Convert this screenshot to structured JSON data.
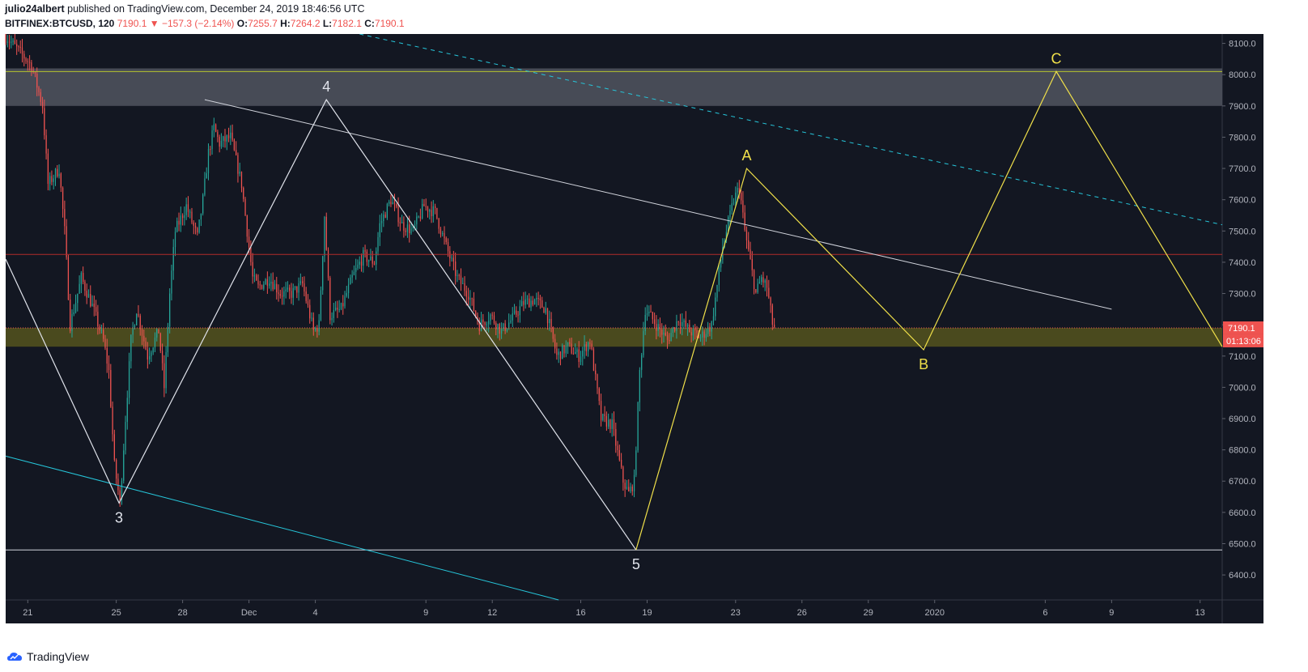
{
  "header": {
    "user": "julio24albert",
    "published_text": " published on TradingView.com, December 24, 2019 18:46:56 UTC",
    "symbol": "BITFINEX:BTCUSD, 120",
    "last": "7190.1",
    "change_arrow": "▼",
    "change": "−157.3 (−2.14%)",
    "o_label": "O:",
    "o_value": "7255.7",
    "h_label": "H:",
    "h_value": "7264.2",
    "l_label": "L:",
    "l_value": "7182.1",
    "c_label": "C:",
    "c_value": "7190.1"
  },
  "footer": {
    "brand": "TradingView"
  },
  "colors": {
    "background": "#131722",
    "up": "#26a69a",
    "down": "#ef5350",
    "wave_white": "#e0e3eb",
    "wave_yellow": "#f0e04a",
    "trend_cyan": "#26c6da",
    "resistance_zone": "#4a4e5a",
    "support_zone": "#4d4d1f"
  },
  "chart_data": {
    "type": "candlestick",
    "timeframe": "120",
    "y_axis": {
      "ticks": [
        "6400.0",
        "6500.0",
        "6600.0",
        "6700.0",
        "6800.0",
        "6900.0",
        "7000.0",
        "7100.0",
        "7200.0",
        "7300.0",
        "7400.0",
        "7500.0",
        "7600.0",
        "7700.0",
        "7800.0",
        "7900.0",
        "8000.0",
        "8100.0"
      ],
      "ylim": [
        6320,
        8130
      ]
    },
    "x_axis": {
      "ticks": [
        "21",
        "25",
        "28",
        "Dec",
        "4",
        "9",
        "12",
        "16",
        "19",
        "23",
        "26",
        "29",
        "2020",
        "6",
        "9",
        "13"
      ],
      "range": [
        "2019-11-20",
        "2020-01-14"
      ]
    },
    "last_price_label": "7190.1",
    "countdown_label": "01:13:06",
    "price_path": [
      [
        "2019-11-20T00:00",
        8130
      ],
      [
        "2019-11-21T06:00",
        8030
      ],
      [
        "2019-11-21T18:00",
        7900
      ],
      [
        "2019-11-22T00:00",
        7650
      ],
      [
        "2019-11-22T12:00",
        7700
      ],
      [
        "2019-11-22T18:00",
        7500
      ],
      [
        "2019-11-23T00:00",
        7200
      ],
      [
        "2019-11-23T12:00",
        7350
      ],
      [
        "2019-11-24T00:00",
        7260
      ],
      [
        "2019-11-24T12:00",
        7150
      ],
      [
        "2019-11-24T18:00",
        7050
      ],
      [
        "2019-11-25T00:00",
        6750
      ],
      [
        "2019-11-25T06:00",
        6630
      ],
      [
        "2019-11-25T12:00",
        6900
      ],
      [
        "2019-11-25T18:00",
        7150
      ],
      [
        "2019-11-26T00:00",
        7250
      ],
      [
        "2019-11-26T12:00",
        7100
      ],
      [
        "2019-11-27T00:00",
        7180
      ],
      [
        "2019-11-27T06:00",
        7000
      ],
      [
        "2019-11-27T12:00",
        7300
      ],
      [
        "2019-11-27T18:00",
        7500
      ],
      [
        "2019-11-28T06:00",
        7580
      ],
      [
        "2019-11-28T18:00",
        7480
      ],
      [
        "2019-11-29T00:00",
        7600
      ],
      [
        "2019-11-29T06:00",
        7750
      ],
      [
        "2019-11-29T12:00",
        7830
      ],
      [
        "2019-11-29T18:00",
        7780
      ],
      [
        "2019-11-30T06:00",
        7800
      ],
      [
        "2019-11-30T18:00",
        7650
      ],
      [
        "2019-12-01T00:00",
        7500
      ],
      [
        "2019-12-01T06:00",
        7350
      ],
      [
        "2019-12-01T12:00",
        7320
      ],
      [
        "2019-12-02T00:00",
        7350
      ],
      [
        "2019-12-02T12:00",
        7300
      ],
      [
        "2019-12-03T00:00",
        7300
      ],
      [
        "2019-12-03T12:00",
        7330
      ],
      [
        "2019-12-04T00:00",
        7180
      ],
      [
        "2019-12-04T06:00",
        7200
      ],
      [
        "2019-12-04T12:00",
        7550
      ],
      [
        "2019-12-04T18:00",
        7230
      ],
      [
        "2019-12-05T06:00",
        7250
      ],
      [
        "2019-12-05T18:00",
        7350
      ],
      [
        "2019-12-06T06:00",
        7420
      ],
      [
        "2019-12-06T18:00",
        7400
      ],
      [
        "2019-12-07T00:00",
        7520
      ],
      [
        "2019-12-07T12:00",
        7600
      ],
      [
        "2019-12-08T00:00",
        7520
      ],
      [
        "2019-12-08T12:00",
        7500
      ],
      [
        "2019-12-09T00:00",
        7580
      ],
      [
        "2019-12-09T12:00",
        7560
      ],
      [
        "2019-12-10T00:00",
        7450
      ],
      [
        "2019-12-10T12:00",
        7350
      ],
      [
        "2019-12-11T00:00",
        7300
      ],
      [
        "2019-12-11T12:00",
        7200
      ],
      [
        "2019-12-12T00:00",
        7230
      ],
      [
        "2019-12-12T12:00",
        7180
      ],
      [
        "2019-12-13T00:00",
        7220
      ],
      [
        "2019-12-13T12:00",
        7270
      ],
      [
        "2019-12-14T00:00",
        7280
      ],
      [
        "2019-12-14T12:00",
        7250
      ],
      [
        "2019-12-15T00:00",
        7100
      ],
      [
        "2019-12-15T12:00",
        7130
      ],
      [
        "2019-12-16T00:00",
        7100
      ],
      [
        "2019-12-16T12:00",
        7150
      ],
      [
        "2019-12-17T00:00",
        6900
      ],
      [
        "2019-12-17T12:00",
        6880
      ],
      [
        "2019-12-18T00:00",
        6700
      ],
      [
        "2019-12-18T06:00",
        6660
      ],
      [
        "2019-12-18T12:00",
        6700
      ],
      [
        "2019-12-18T18:00",
        7050
      ],
      [
        "2019-12-19T00:00",
        7250
      ],
      [
        "2019-12-19T12:00",
        7200
      ],
      [
        "2019-12-20T00:00",
        7150
      ],
      [
        "2019-12-20T12:00",
        7220
      ],
      [
        "2019-12-21T00:00",
        7180
      ],
      [
        "2019-12-21T12:00",
        7160
      ],
      [
        "2019-12-22T00:00",
        7200
      ],
      [
        "2019-12-22T12:00",
        7450
      ],
      [
        "2019-12-23T00:00",
        7600
      ],
      [
        "2019-12-23T06:00",
        7640
      ],
      [
        "2019-12-23T12:00",
        7500
      ],
      [
        "2019-12-23T18:00",
        7400
      ],
      [
        "2019-12-24T00:00",
        7300
      ],
      [
        "2019-12-24T06:00",
        7350
      ],
      [
        "2019-12-24T12:00",
        7320
      ],
      [
        "2019-12-24T18:47",
        7190
      ]
    ],
    "horizontal_lines": [
      {
        "price": 8010,
        "style": "solid",
        "color": "#b5c32e"
      },
      {
        "price": 7425,
        "style": "solid",
        "color": "#b22b2b"
      },
      {
        "price": 6480,
        "style": "solid",
        "color": "#d1d4dc"
      }
    ],
    "zones": [
      {
        "from": 7900,
        "to": 8020,
        "color": "#4a4e5a"
      },
      {
        "from": 7130,
        "to": 7190,
        "color": "#4d4d1f"
      }
    ],
    "trendlines": [
      {
        "from": [
          "2019-11-29T00:00",
          7920
        ],
        "to": [
          "2020-01-09T00:00",
          7250
        ],
        "color": "#d1d4dc",
        "style": "solid"
      },
      {
        "from": [
          "2019-12-06T00:00",
          8130
        ],
        "to": [
          "2020-01-14T00:00",
          7520
        ],
        "color": "#26c6da",
        "style": "dashed"
      },
      {
        "from": [
          "2019-11-20T00:00",
          6780
        ],
        "to": [
          "2019-12-15T00:00",
          6320
        ],
        "color": "#26c6da",
        "style": "solid"
      }
    ],
    "wave_paths": [
      {
        "color": "#e0e3eb",
        "points": [
          [
            "2019-11-20T00:00",
            7410
          ],
          [
            "2019-11-25T03:00",
            6630
          ],
          [
            "2019-12-04T12:00",
            7920
          ],
          [
            "2019-12-18T12:00",
            6480
          ]
        ]
      },
      {
        "color": "#f0e04a",
        "points": [
          [
            "2019-12-18T12:00",
            6480
          ],
          [
            "2019-12-23T12:00",
            7700
          ],
          [
            "2019-12-31T12:00",
            7120
          ],
          [
            "2020-01-06T12:00",
            8010
          ],
          [
            "2020-01-14T00:00",
            7130
          ]
        ]
      }
    ],
    "wave_labels": [
      {
        "text": "3",
        "at": [
          "2019-11-25T03:00",
          6630
        ],
        "pos": "below",
        "color": "#e0e3eb"
      },
      {
        "text": "4",
        "at": [
          "2019-12-04T12:00",
          7920
        ],
        "pos": "above",
        "color": "#e0e3eb"
      },
      {
        "text": "5",
        "at": [
          "2019-12-18T12:00",
          6480
        ],
        "pos": "below",
        "color": "#e0e3eb"
      },
      {
        "text": "A",
        "at": [
          "2019-12-23T12:00",
          7700
        ],
        "pos": "above",
        "color": "#f0e04a"
      },
      {
        "text": "B",
        "at": [
          "2019-12-31T12:00",
          7120
        ],
        "pos": "below",
        "color": "#f0e04a"
      },
      {
        "text": "C",
        "at": [
          "2020-01-06T12:00",
          8010
        ],
        "pos": "above",
        "color": "#f0e04a"
      }
    ]
  }
}
